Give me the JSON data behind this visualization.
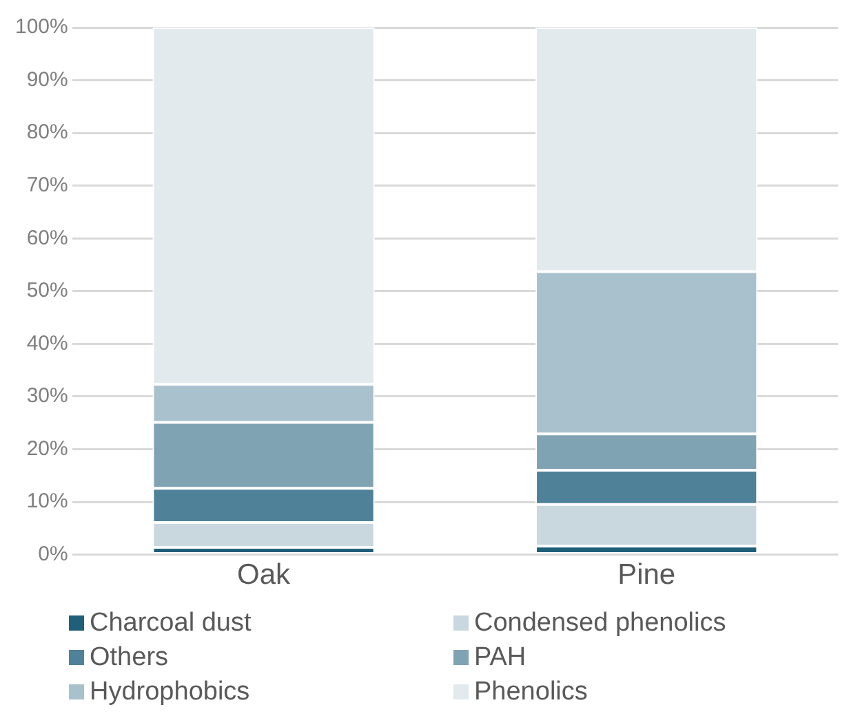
{
  "chart_data": {
    "type": "bar",
    "stacked": true,
    "categories": [
      "Oak",
      "Pine"
    ],
    "series": [
      {
        "name": "Charcoal dust",
        "color": "#1f5f7a",
        "values": [
          1.4,
          1.6
        ]
      },
      {
        "name": "Condensed phenolics",
        "color": "#c9d8df",
        "values": [
          4.7,
          7.9
        ]
      },
      {
        "name": "Others",
        "color": "#4f8299",
        "values": [
          6.5,
          6.5
        ]
      },
      {
        "name": "PAH",
        "color": "#7fa3b3",
        "values": [
          12.5,
          6.9
        ]
      },
      {
        "name": "Hydrophobics",
        "color": "#a9c1cc",
        "values": [
          7.2,
          30.8
        ]
      },
      {
        "name": "Phenolics",
        "color": "#e2eaee",
        "values": [
          67.7,
          46.3
        ]
      }
    ],
    "ylim": [
      0,
      100
    ],
    "yticks": [
      {
        "value": 0,
        "label": "0%"
      },
      {
        "value": 10,
        "label": "10%"
      },
      {
        "value": 20,
        "label": "20%"
      },
      {
        "value": 30,
        "label": "30%"
      },
      {
        "value": 40,
        "label": "40%"
      },
      {
        "value": 50,
        "label": "50%"
      },
      {
        "value": 60,
        "label": "60%"
      },
      {
        "value": 70,
        "label": "70%"
      },
      {
        "value": 80,
        "label": "80%"
      },
      {
        "value": 90,
        "label": "90%"
      },
      {
        "value": 100,
        "label": "100%"
      }
    ],
    "grid": "y",
    "legend": "bottom"
  }
}
